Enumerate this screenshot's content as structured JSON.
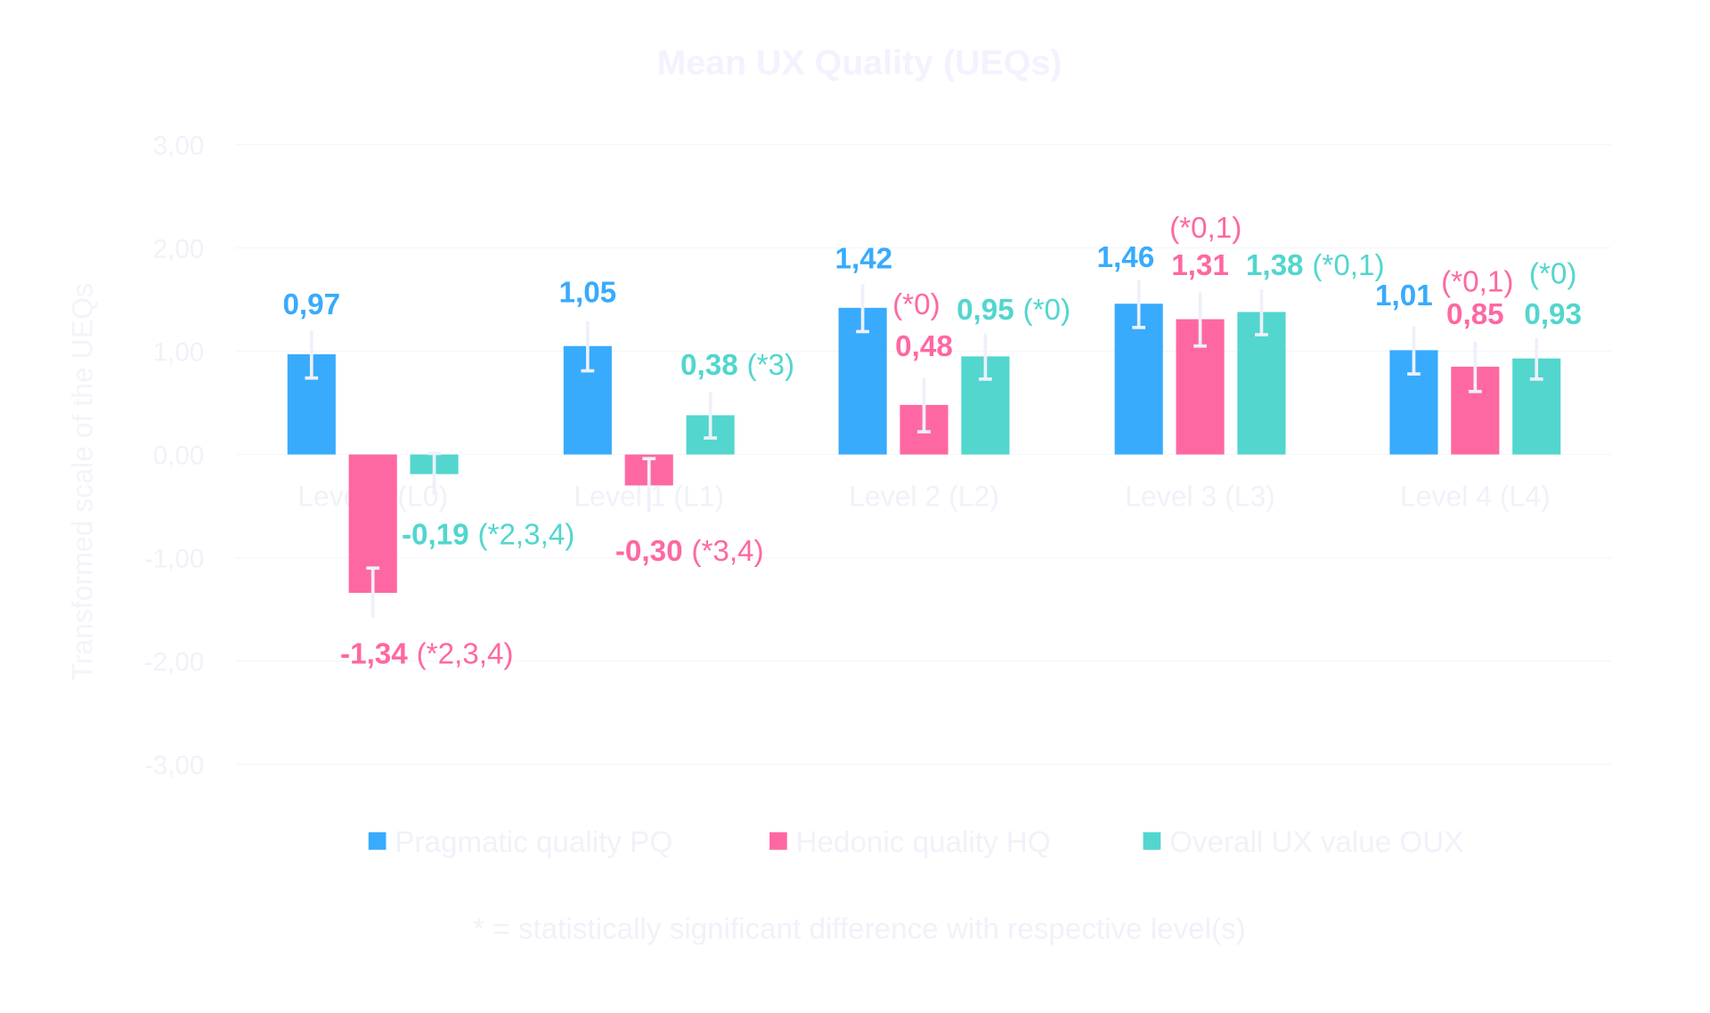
{
  "chart_data": {
    "type": "bar",
    "title": "Mean UX Quality (UEQs)",
    "xlabel": "",
    "ylabel": "Transformed scale of the UEQs",
    "ylim": [
      -3,
      3
    ],
    "yticks": [
      "3,00",
      "2,00",
      "1,00",
      "0,00",
      "-1,00",
      "-2,00",
      "-3,00"
    ],
    "ytick_values": [
      3,
      2,
      1,
      0,
      -1,
      -2,
      -3
    ],
    "grid": true,
    "legend_placement": "bottom",
    "categories": [
      "Level 0 (L0)",
      "Level 1 (L1)",
      "Level 2 (L2)",
      "Level 3 (L3)",
      "Level 4 (L4)"
    ],
    "series": [
      {
        "name": "Pragmatic quality PQ",
        "color": "#38abfc",
        "values": [
          0.97,
          1.05,
          1.42,
          1.46,
          1.01
        ],
        "labels": [
          "0,97",
          "1,05",
          "1,42",
          "1,46",
          "1,01"
        ],
        "significance": [
          "",
          "",
          "",
          "",
          ""
        ],
        "error": [
          0.23,
          0.24,
          0.23,
          0.23,
          0.23
        ]
      },
      {
        "name": "Hedonic quality HQ",
        "color": "#fe68a2",
        "values": [
          -1.34,
          -0.3,
          0.48,
          1.31,
          0.85
        ],
        "labels": [
          "-1,34",
          "-0,30",
          "0,48",
          "1,31",
          "0,85"
        ],
        "significance": [
          "(*2,3,4)",
          "(*3,4)",
          "(*0)",
          "(*0,1)",
          "(*0,1)"
        ],
        "error": [
          0.24,
          0.26,
          0.26,
          0.26,
          0.24
        ]
      },
      {
        "name": "Overall UX value OUX",
        "color": "#52d6ce",
        "values": [
          -0.19,
          0.38,
          0.95,
          1.38,
          0.93
        ],
        "labels": [
          "-0,19",
          "0,38",
          "0,95",
          "1,38",
          "0,93"
        ],
        "significance": [
          "(*2,3,4)",
          "(*3)",
          "(*0)",
          "(*0,1)",
          "(*0)"
        ],
        "error": [
          0.2,
          0.22,
          0.22,
          0.22,
          0.2
        ]
      }
    ],
    "footnote": "* = statistically significant difference with respective level(s)"
  }
}
